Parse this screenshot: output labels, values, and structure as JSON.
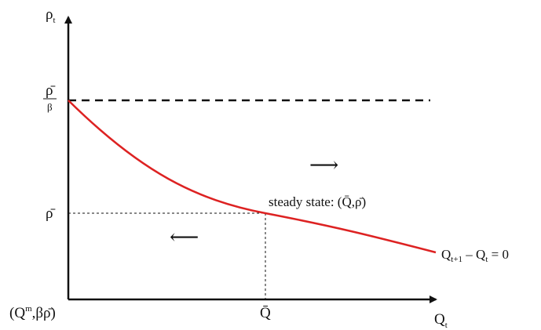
{
  "axes": {
    "y_label": "ρ",
    "y_label_sub": "t",
    "x_label": "Q",
    "x_label_sub": "t"
  },
  "y_ticks": {
    "upper_num": "ρ̄",
    "upper_den": "β",
    "mid": "ρ̄"
  },
  "x_ticks": {
    "steady": "Q̄"
  },
  "origin_label": {
    "open": "(Q",
    "sup": "m",
    "rest": ",βρ̄)"
  },
  "steady_state_label": "steady state: (Q̄,ρ̄)",
  "curve_label": {
    "q1": "Q",
    "s1": "t+1",
    "mid": " – Q",
    "s2": "t",
    "tail": " = 0"
  },
  "arrows": {
    "right": "⟶",
    "left": "⟵"
  },
  "colors": {
    "curve": "#dd2222",
    "ink": "#111111"
  }
}
